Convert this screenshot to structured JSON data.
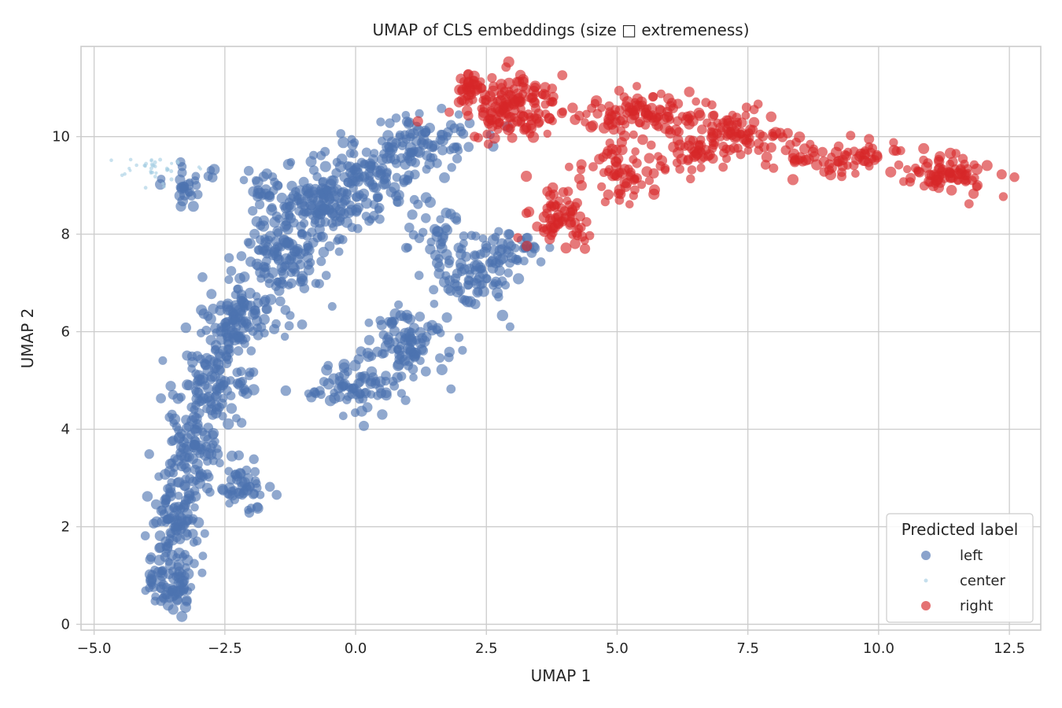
{
  "chart_data": {
    "type": "scatter",
    "title": "UMAP of CLS embeddings (size □ extremeness)",
    "xlabel": "UMAP 1",
    "ylabel": "UMAP 2",
    "xlim": [
      -5.25,
      13.1
    ],
    "ylim": [
      -0.12,
      11.85
    ],
    "xticks": [
      -5.0,
      -2.5,
      0.0,
      2.5,
      5.0,
      7.5,
      10.0,
      12.5
    ],
    "xtick_labels": [
      "−5.0",
      "−2.5",
      "0.0",
      "2.5",
      "5.0",
      "7.5",
      "10.0",
      "12.5"
    ],
    "yticks": [
      0,
      2,
      4,
      6,
      8,
      10
    ],
    "ytick_labels": [
      "0",
      "2",
      "4",
      "6",
      "8",
      "10"
    ],
    "grid": true,
    "legend": {
      "title": "Predicted label",
      "placement": "lower-right",
      "entries": [
        "left",
        "center",
        "right"
      ]
    },
    "series": [
      {
        "name": "left",
        "color": "#4c72b0",
        "clusters": [
          {
            "center": [
              -3.5,
              0.9
            ],
            "spread": [
              0.35,
              0.4
            ],
            "count": 90
          },
          {
            "center": [
              -3.4,
              2.2
            ],
            "spread": [
              0.35,
              0.5
            ],
            "count": 90
          },
          {
            "center": [
              -3.1,
              3.6
            ],
            "spread": [
              0.4,
              0.6
            ],
            "count": 100
          },
          {
            "center": [
              -2.2,
              2.8
            ],
            "spread": [
              0.35,
              0.35
            ],
            "count": 50
          },
          {
            "center": [
              -2.7,
              5.0
            ],
            "spread": [
              0.45,
              0.6
            ],
            "count": 110
          },
          {
            "center": [
              -2.2,
              6.3
            ],
            "spread": [
              0.55,
              0.5
            ],
            "count": 110
          },
          {
            "center": [
              -1.4,
              7.5
            ],
            "spread": [
              0.6,
              0.6
            ],
            "count": 120
          },
          {
            "center": [
              -0.7,
              8.5
            ],
            "spread": [
              0.6,
              0.5
            ],
            "count": 120
          },
          {
            "center": [
              0.2,
              9.2
            ],
            "spread": [
              0.7,
              0.5
            ],
            "count": 120
          },
          {
            "center": [
              1.3,
              9.9
            ],
            "spread": [
              0.6,
              0.45
            ],
            "count": 90
          },
          {
            "center": [
              0.0,
              4.9
            ],
            "spread": [
              0.6,
              0.35
            ],
            "count": 80
          },
          {
            "center": [
              1.0,
              5.8
            ],
            "spread": [
              0.55,
              0.5
            ],
            "count": 90
          },
          {
            "center": [
              2.2,
              7.1
            ],
            "spread": [
              0.5,
              0.45
            ],
            "count": 80
          },
          {
            "center": [
              3.0,
              7.6
            ],
            "spread": [
              0.4,
              0.35
            ],
            "count": 40
          },
          {
            "center": [
              -3.1,
              9.0
            ],
            "spread": [
              0.35,
              0.3
            ],
            "count": 30
          },
          {
            "center": [
              -1.7,
              9.0
            ],
            "spread": [
              0.4,
              0.3
            ],
            "count": 30
          },
          {
            "center": [
              1.6,
              8.0
            ],
            "spread": [
              0.4,
              0.35
            ],
            "count": 30
          }
        ]
      },
      {
        "name": "center",
        "color": "#a6cee3",
        "clusters": [
          {
            "center": [
              -3.8,
              9.3
            ],
            "spread": [
              0.45,
              0.18
            ],
            "count": 40
          }
        ]
      },
      {
        "name": "right",
        "color": "#d62728",
        "clusters": [
          {
            "center": [
              3.0,
              10.6
            ],
            "spread": [
              0.6,
              0.45
            ],
            "count": 150
          },
          {
            "center": [
              2.2,
              11.0
            ],
            "spread": [
              0.25,
              0.18
            ],
            "count": 30
          },
          {
            "center": [
              5.5,
              10.5
            ],
            "spread": [
              0.8,
              0.25
            ],
            "count": 100
          },
          {
            "center": [
              7.2,
              10.1
            ],
            "spread": [
              0.6,
              0.35
            ],
            "count": 80
          },
          {
            "center": [
              9.3,
              9.6
            ],
            "spread": [
              0.8,
              0.25
            ],
            "count": 70
          },
          {
            "center": [
              11.3,
              9.2
            ],
            "spread": [
              0.6,
              0.25
            ],
            "count": 80
          },
          {
            "center": [
              5.2,
              9.3
            ],
            "spread": [
              0.5,
              0.5
            ],
            "count": 70
          },
          {
            "center": [
              6.5,
              9.6
            ],
            "spread": [
              0.4,
              0.35
            ],
            "count": 40
          },
          {
            "center": [
              3.9,
              8.4
            ],
            "spread": [
              0.35,
              0.4
            ],
            "count": 70
          }
        ]
      }
    ]
  }
}
